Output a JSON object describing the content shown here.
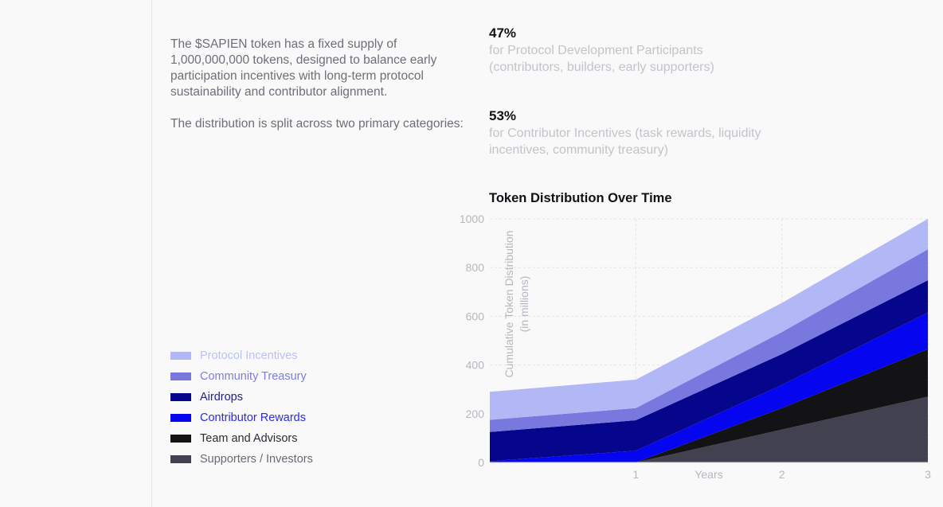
{
  "intro": {
    "paragraph1": "The $SAPIEN token has a fixed supply of 1,000,000,000 tokens, designed to balance early participation incentives with long-term protocol sustainability and contributor alignment.",
    "paragraph2": "The distribution is split across two primary categories:"
  },
  "stats": [
    {
      "percent": "47%",
      "description": "for Protocol Development Participants (contributors, builders, early supporters)"
    },
    {
      "percent": "53%",
      "description": "for Contributor Incentives (task rewards, liquidity incentives, community treasury)"
    }
  ],
  "chart_data": {
    "type": "area",
    "stacked": true,
    "title": "Token Distribution Over Time",
    "xlabel": "Years",
    "ylabel": "Cumulative Token Distribution\n(in millions)",
    "x": [
      0,
      1,
      2,
      3
    ],
    "x_tick_labels": [
      "1",
      "2",
      "3"
    ],
    "x_ticks": [
      1,
      2,
      3
    ],
    "xlim": [
      0,
      3
    ],
    "ylim": [
      0,
      1000
    ],
    "y_ticks": [
      0,
      200,
      400,
      600,
      800,
      1000
    ],
    "grid": true,
    "legend_position": "left",
    "series": [
      {
        "name": "Supporters / Investors",
        "color": "#41414f",
        "values": [
          0,
          0,
          135,
          270
        ]
      },
      {
        "name": "Team and Advisors",
        "color": "#131316",
        "values": [
          0,
          0,
          88,
          195
        ]
      },
      {
        "name": "Contributor Rewards",
        "color": "#0505ef",
        "values": [
          5,
          48,
          95,
          150
        ]
      },
      {
        "name": "Airdrops",
        "color": "#06068c",
        "values": [
          120,
          125,
          127,
          133
        ]
      },
      {
        "name": "Community Treasury",
        "color": "#7878de",
        "values": [
          50,
          50,
          90,
          127
        ]
      },
      {
        "name": "Protocol Incentives",
        "color": "#b2b7f6",
        "values": [
          115,
          117,
          120,
          125
        ]
      }
    ],
    "legend_text_colors": {
      "Protocol Incentives": "#bcc1f7",
      "Community Treasury": "#7d7ddf",
      "Airdrops": "#1f1f8f",
      "Contributor Rewards": "#2b2be0",
      "Team and Advisors": "#2c2c33",
      "Supporters / Investors": "#6a6a74"
    }
  }
}
